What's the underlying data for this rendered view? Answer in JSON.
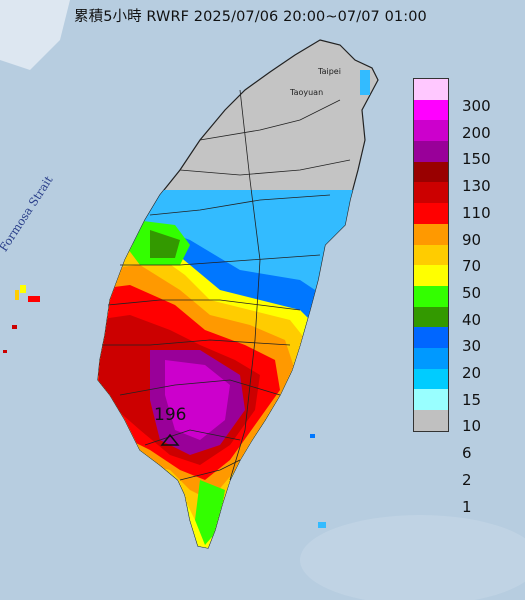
{
  "title": "累積5小時 RWRF 2025/07/06 20:00~07/07 01:00",
  "map": {
    "strait_label": "Formosa Strait",
    "city_labels": [
      "Taipei",
      "Taoyuan"
    ],
    "max_value_label": "196"
  },
  "legend": {
    "items": [
      {
        "label": "300",
        "color": "#ffc8ff"
      },
      {
        "label": "200",
        "color": "#ff00ff"
      },
      {
        "label": "150",
        "color": "#cc00cc"
      },
      {
        "label": "130",
        "color": "#990099"
      },
      {
        "label": "110",
        "color": "#990000"
      },
      {
        "label": "90",
        "color": "#cc0000"
      },
      {
        "label": "70",
        "color": "#ff0000"
      },
      {
        "label": "50",
        "color": "#ff9900"
      },
      {
        "label": "40",
        "color": "#ffcc00"
      },
      {
        "label": "30",
        "color": "#ffff00"
      },
      {
        "label": "20",
        "color": "#33ff00"
      },
      {
        "label": "15",
        "color": "#339900"
      },
      {
        "label": "10",
        "color": "#0066ff"
      },
      {
        "label": "6",
        "color": "#0099ff"
      },
      {
        "label": "2",
        "color": "#00ccff"
      },
      {
        "label": "1",
        "color": "#99ffff"
      },
      {
        "label": "",
        "color": "#c0c0c0"
      }
    ]
  }
}
